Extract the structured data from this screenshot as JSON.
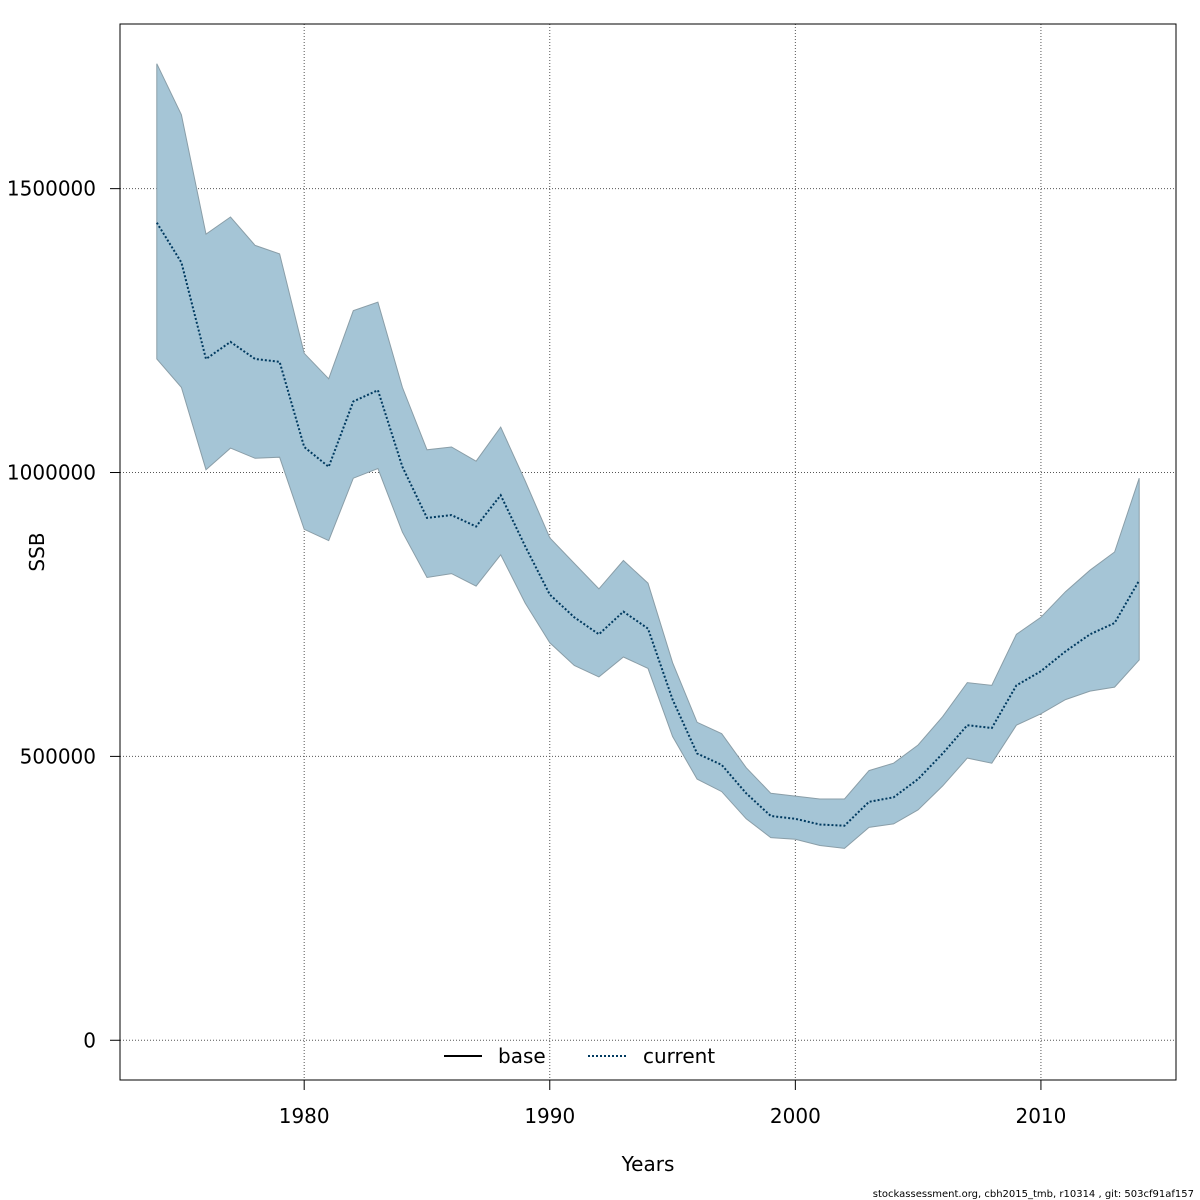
{
  "chart_data": {
    "type": "line",
    "xlabel": "Years",
    "ylabel": "SSB",
    "xlim": [
      1972.5,
      2015.5
    ],
    "ylim": [
      -70000,
      1790000
    ],
    "x_ticks": [
      1980,
      1990,
      2000,
      2010
    ],
    "y_ticks": [
      0,
      500000,
      1000000,
      1500000
    ],
    "x_tick_labels": [
      "1980",
      "1990",
      "2000",
      "2010"
    ],
    "y_tick_labels": [
      "0",
      "500000",
      "1000000",
      "1500000"
    ],
    "grid": true,
    "legend": {
      "position": "bottom-center",
      "entries": [
        "base",
        "current"
      ]
    },
    "colors": {
      "band": "#a5c5d6",
      "band_edge": "#8a9ea8",
      "current_line": "#003a60",
      "base_line": "#000000"
    },
    "x": [
      1974,
      1975,
      1976,
      1977,
      1978,
      1979,
      1980,
      1981,
      1982,
      1983,
      1984,
      1985,
      1986,
      1987,
      1988,
      1989,
      1990,
      1991,
      1992,
      1993,
      1994,
      1995,
      1996,
      1997,
      1998,
      1999,
      2000,
      2001,
      2002,
      2003,
      2004,
      2005,
      2006,
      2007,
      2008,
      2009,
      2010,
      2011,
      2012,
      2013,
      2014
    ],
    "series": [
      {
        "name": "current",
        "style": "dotted",
        "values": [
          1440000,
          1370000,
          1200000,
          1230000,
          1200000,
          1195000,
          1045000,
          1010000,
          1125000,
          1145000,
          1010000,
          920000,
          925000,
          905000,
          960000,
          870000,
          785000,
          745000,
          715000,
          755000,
          725000,
          600000,
          505000,
          485000,
          435000,
          395000,
          390000,
          380000,
          378000,
          420000,
          428000,
          460000,
          505000,
          555000,
          550000,
          625000,
          650000,
          685000,
          715000,
          735000,
          810000
        ]
      },
      {
        "name": "upper",
        "values": [
          1720000,
          1630000,
          1420000,
          1450000,
          1400000,
          1385000,
          1210000,
          1165000,
          1285000,
          1300000,
          1150000,
          1040000,
          1045000,
          1020000,
          1080000,
          985000,
          885000,
          840000,
          795000,
          845000,
          805000,
          665000,
          560000,
          540000,
          480000,
          435000,
          430000,
          425000,
          425000,
          475000,
          488000,
          520000,
          570000,
          630000,
          625000,
          715000,
          745000,
          790000,
          828000,
          860000,
          990000
        ]
      },
      {
        "name": "lower",
        "values": [
          1200000,
          1150000,
          1005000,
          1043000,
          1025000,
          1027000,
          900000,
          880000,
          990000,
          1007000,
          895000,
          815000,
          822000,
          800000,
          855000,
          770000,
          700000,
          660000,
          640000,
          675000,
          655000,
          535000,
          460000,
          438000,
          390000,
          357000,
          354000,
          343000,
          338000,
          375000,
          381000,
          406000,
          448000,
          497000,
          488000,
          555000,
          575000,
          600000,
          615000,
          622000,
          670000
        ]
      }
    ]
  },
  "footer": "stockassessment.org, cbh2015_tmb, r10314 , git: 503cf91af157"
}
